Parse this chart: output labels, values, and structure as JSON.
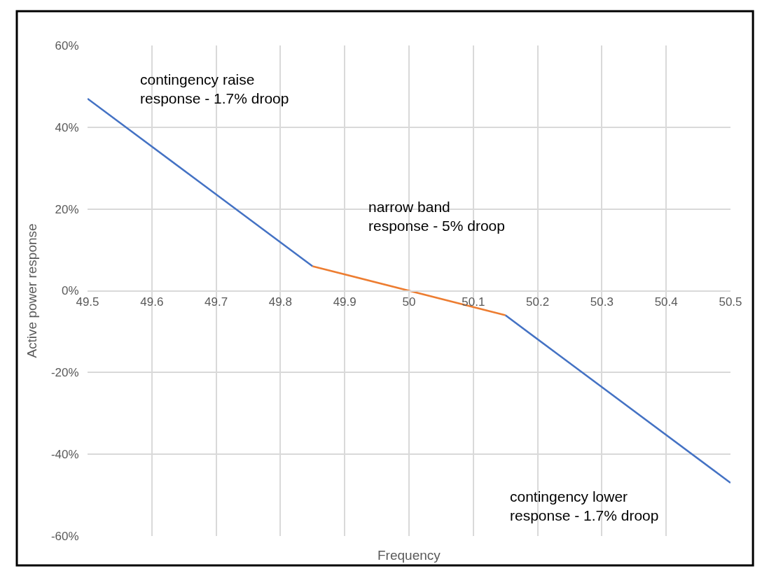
{
  "chart_data": {
    "type": "line",
    "xlabel": "Frequency",
    "ylabel": "Active power response",
    "series": [
      {
        "color": "#4472c4",
        "x": [
          49.5,
          49.85
        ],
        "values": [
          47,
          6
        ]
      },
      {
        "color": "#ed7d31",
        "x": [
          49.85,
          50.15
        ],
        "values": [
          6,
          -6
        ]
      },
      {
        "color": "#4472c4",
        "x": [
          50.15,
          50.5
        ],
        "values": [
          -6,
          -47
        ]
      }
    ],
    "xlim": [
      49.5,
      50.5
    ],
    "xticks": [
      49.5,
      49.6,
      49.7,
      49.8,
      49.9,
      50,
      50.1,
      50.2,
      50.3,
      50.4,
      50.5
    ],
    "ylim": [
      -60,
      60
    ],
    "yticks": [
      {
        "value": -60,
        "label": "-60%"
      },
      {
        "value": -40,
        "label": "-40%"
      },
      {
        "value": -20,
        "label": "-20%"
      },
      {
        "value": 0,
        "label": "0%"
      },
      {
        "value": 20,
        "label": "20%"
      },
      {
        "value": 40,
        "label": "40%"
      },
      {
        "value": 60,
        "label": "60%"
      }
    ],
    "grid": true,
    "marker": "none",
    "line_style": "solid",
    "annotations": [
      "contingency raise\nresponse - 1.7% droop",
      "narrow band\nresponse - 5% droop",
      "contingency lower\nresponse - 1.7% droop"
    ]
  }
}
